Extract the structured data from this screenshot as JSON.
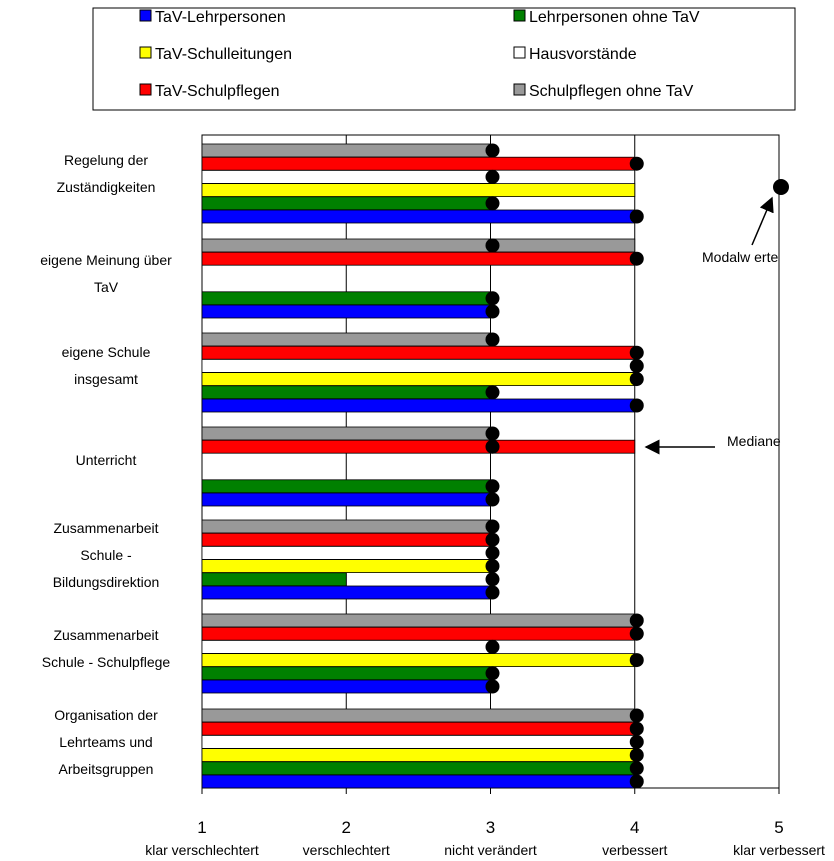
{
  "chart_data": {
    "type": "bar",
    "orientation": "horizontal",
    "xlim": [
      1,
      5
    ],
    "grid": true,
    "legend_position": "top",
    "x_ticks": [
      {
        "value": 1,
        "number": "1",
        "label": "klar verschlechtert"
      },
      {
        "value": 2,
        "number": "2",
        "label": "verschlechtert"
      },
      {
        "value": 3,
        "number": "3",
        "label": "nicht verändert"
      },
      {
        "value": 4,
        "number": "4",
        "label": "verbessert"
      },
      {
        "value": 5,
        "number": "5",
        "label": "klar verbessert"
      }
    ],
    "legend": [
      {
        "label": "TaV-Lehrpersonen",
        "color": "#0000ff"
      },
      {
        "label": "Lehrpersonen ohne TaV",
        "color": "#008000"
      },
      {
        "label": "TaV-Schulleitungen",
        "color": "#ffff00"
      },
      {
        "label": "Hausvorstände",
        "color": "#ffffff"
      },
      {
        "label": "TaV-Schulpflegen",
        "color": "#ff0000"
      },
      {
        "label": "Schulpflegen ohne TaV",
        "color": "#999999"
      }
    ],
    "series_order_top_to_bottom": [
      "Schulpflegen ohne TaV",
      "TaV-Schulpflegen",
      "Hausvorstände",
      "TaV-Schulleitungen",
      "Lehrpersonen ohne TaV",
      "TaV-Lehrpersonen"
    ],
    "categories": [
      {
        "label": [
          "Regelung der",
          "Zuständigkeiten"
        ],
        "medians": [
          3,
          4,
          3,
          4,
          3,
          4
        ],
        "modes": [
          3,
          4,
          3,
          null,
          3,
          4
        ]
      },
      {
        "label": [
          "eigene Meinung über",
          "TaV"
        ],
        "medians": [
          4,
          4,
          null,
          null,
          3,
          3
        ],
        "modes": [
          3,
          4,
          null,
          null,
          3,
          3
        ]
      },
      {
        "label": [
          "eigene Schule",
          "insgesamt"
        ],
        "medians": [
          3,
          4,
          4,
          4,
          3,
          4
        ],
        "modes": [
          3,
          4,
          4,
          4,
          3,
          4
        ]
      },
      {
        "label": [
          "Unterricht"
        ],
        "medians": [
          3,
          4,
          null,
          null,
          3,
          3
        ],
        "modes": [
          3,
          3,
          null,
          null,
          3,
          3
        ]
      },
      {
        "label": [
          "Zusammenarbeit",
          "Schule -",
          "Bildungsdirektion"
        ],
        "medians": [
          3,
          3,
          3,
          3,
          2,
          3
        ],
        "modes": [
          3,
          3,
          3,
          3,
          3,
          3
        ]
      },
      {
        "label": [
          "Zusammenarbeit",
          "Schule - Schulpflege"
        ],
        "medians": [
          4,
          4,
          3,
          4,
          3,
          3
        ],
        "modes": [
          4,
          4,
          3,
          4,
          3,
          3
        ]
      },
      {
        "label": [
          "Organisation der",
          "Lehrteams und",
          "Arbeitsgruppen"
        ],
        "medians": [
          4,
          4,
          4,
          4,
          4,
          4
        ],
        "modes": [
          4,
          4,
          4,
          4,
          4,
          4
        ]
      }
    ],
    "annotations": [
      {
        "text": "Modalw erte",
        "points_to_value": 5
      },
      {
        "text": "Mediane",
        "points_to_value": 4
      }
    ]
  }
}
